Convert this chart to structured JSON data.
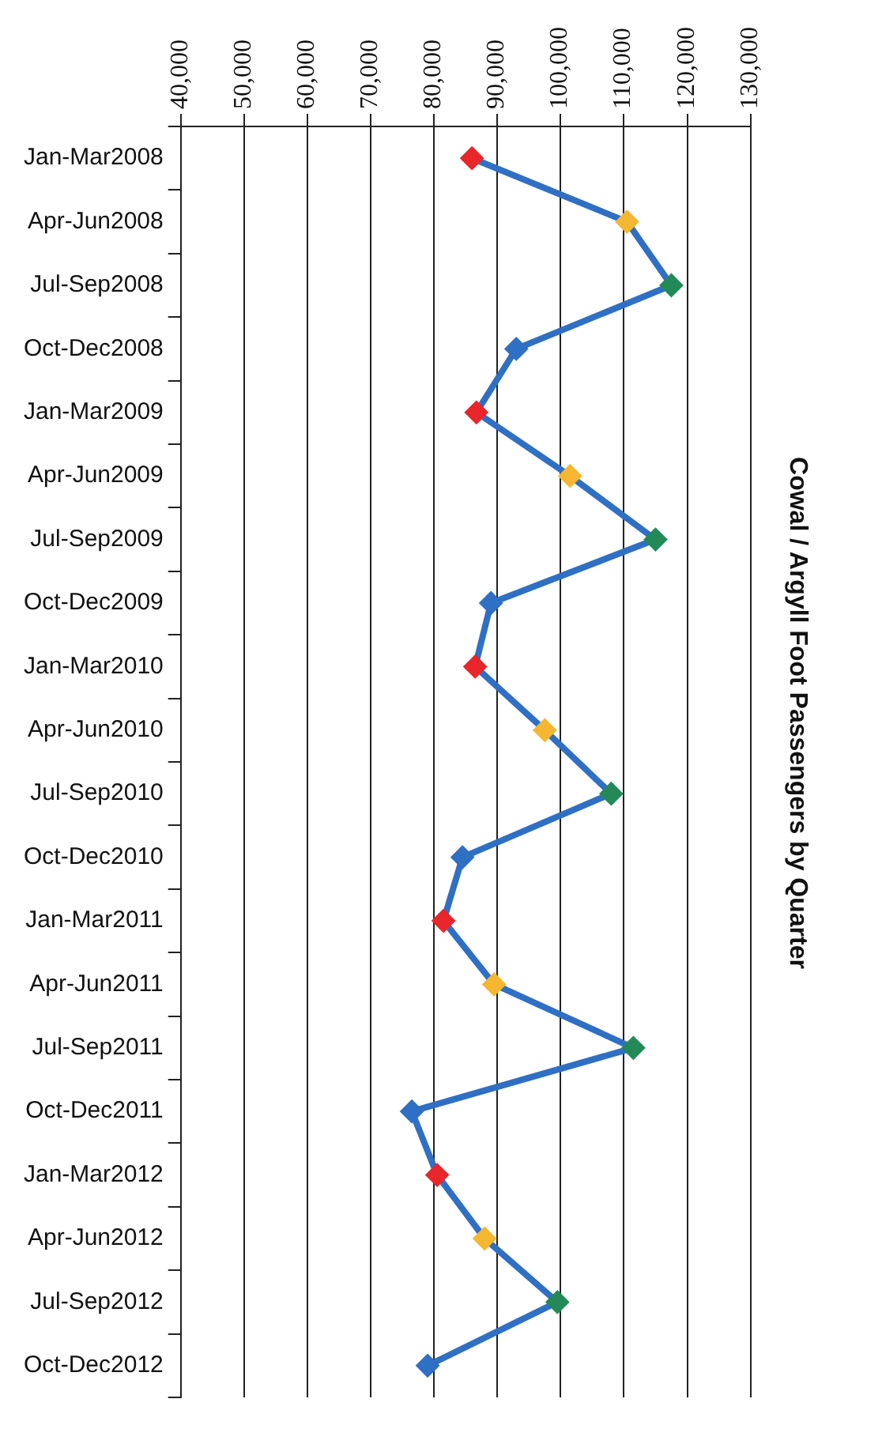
{
  "chart_data": {
    "type": "line",
    "orientation": "horizontal",
    "title": "Cowal / Argyll Foot Passengers by Quarter",
    "categories": [
      "Jan-Mar2008",
      "Apr-Jun2008",
      "Jul-Sep2008",
      "Oct-Dec2008",
      "Jan-Mar2009",
      "Apr-Jun2009",
      "Jul-Sep2009",
      "Oct-Dec2009",
      "Jan-Mar2010",
      "Apr-Jun2010",
      "Jul-Sep2010",
      "Oct-Dec2010",
      "Jan-Mar2011",
      "Apr-Jun2011",
      "Jul-Sep2011",
      "Oct-Dec2011",
      "Jan-Mar2012",
      "Apr-Jun2012",
      "Jul-Sep2012",
      "Oct-Dec2012"
    ],
    "series": [
      {
        "color": "#2f6fc4",
        "values": [
          86000,
          110500,
          117500,
          93000,
          86700,
          101500,
          115000,
          89000,
          86500,
          97500,
          108000,
          84500,
          81500,
          89500,
          111500,
          76500,
          80500,
          88000,
          99500,
          79000
        ],
        "colors": [
          "#e8262b",
          "#f5b731",
          "#238a57",
          "#2f6fc4",
          "#e8262b",
          "#f5b731",
          "#238a57",
          "#2f6fc4",
          "#e8262b",
          "#f5b731",
          "#238a57",
          "#2f6fc4",
          "#e8262b",
          "#f5b731",
          "#238a57",
          "#2f6fc4",
          "#e8262b",
          "#f5b731",
          "#238a57",
          "#2f6fc4"
        ]
      }
    ],
    "xlim": [
      40000,
      130000
    ],
    "xticks": [
      {
        "value": 40000,
        "label": "40,000"
      },
      {
        "value": 50000,
        "label": "50,000"
      },
      {
        "value": 60000,
        "label": "60,000"
      },
      {
        "value": 70000,
        "label": "70,000"
      },
      {
        "value": 80000,
        "label": "80,000"
      },
      {
        "value": 90000,
        "label": "90,000"
      },
      {
        "value": 100000,
        "label": "100,000"
      },
      {
        "value": 110000,
        "label": "110,000"
      },
      {
        "value": 120000,
        "label": "120,000"
      },
      {
        "value": 130000,
        "label": "130,000"
      }
    ],
    "grid": "x",
    "legend": false,
    "marker": "diamond",
    "line_style": "solid"
  }
}
